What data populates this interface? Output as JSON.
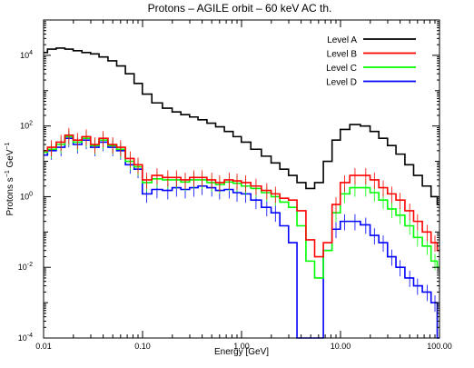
{
  "chart_data": {
    "type": "line",
    "title": "Protons – AGILE orbit – 60 keV AC th.",
    "xlabel": "Energy [GeV]",
    "ylabel": "Protons s",
    "ylabel_sup1": "−1",
    "ylabel_mid": " GeV",
    "ylabel_sup2": "−1",
    "x_scale": "log",
    "y_scale": "log",
    "xlim": [
      0.01,
      100
    ],
    "ylim": [
      0.0001,
      100000
    ],
    "x_ticks": [
      {
        "value": 0.01,
        "label": "0.01"
      },
      {
        "value": 0.1,
        "label": "0.10"
      },
      {
        "value": 1,
        "label": "1.00"
      },
      {
        "value": 10,
        "label": "10.00"
      },
      {
        "value": 100,
        "label": "100.00"
      }
    ],
    "y_ticks": [
      {
        "value": 0.0001,
        "base": "10",
        "exp": "-4"
      },
      {
        "value": 0.01,
        "base": "10",
        "exp": "-2"
      },
      {
        "value": 1,
        "base": "10",
        "exp": "0"
      },
      {
        "value": 100,
        "base": "10",
        "exp": "2"
      },
      {
        "value": 10000,
        "base": "10",
        "exp": "4"
      }
    ],
    "legend_position": "top-right",
    "x": [
      0.01,
      0.012,
      0.015,
      0.018,
      0.022,
      0.027,
      0.033,
      0.04,
      0.05,
      0.06,
      0.075,
      0.09,
      0.11,
      0.14,
      0.18,
      0.22,
      0.27,
      0.33,
      0.4,
      0.5,
      0.6,
      0.75,
      0.9,
      1.1,
      1.4,
      1.8,
      2.2,
      2.7,
      3.3,
      4.0,
      5.0,
      6.0,
      7.5,
      9.0,
      11,
      14,
      18,
      22,
      27,
      33,
      40,
      50,
      60,
      75,
      90,
      100
    ],
    "series": [
      {
        "name": "Level A",
        "color": "#000000",
        "values": [
          12000,
          15000,
          16000,
          15000,
          13500,
          12000,
          11000,
          9000,
          7000,
          5000,
          3000,
          1600,
          800,
          450,
          320,
          250,
          210,
          180,
          150,
          120,
          95,
          70,
          50,
          35,
          22,
          14,
          9,
          6,
          4,
          2.5,
          1.7,
          2.5,
          10,
          40,
          80,
          110,
          100,
          70,
          45,
          28,
          16,
          8,
          4,
          2,
          1,
          0.6
        ]
      },
      {
        "name": "Level B",
        "color": "#ff0000",
        "values": [
          20,
          25,
          35,
          55,
          40,
          50,
          30,
          45,
          30,
          25,
          12,
          8,
          3,
          4,
          3.5,
          3.5,
          3,
          3.5,
          3.5,
          3,
          2.5,
          3,
          2.8,
          2.5,
          2,
          1.5,
          1.2,
          0.9,
          0.8,
          0.4,
          0.06,
          0.02,
          0.05,
          0.6,
          2.5,
          4,
          4,
          3,
          1.8,
          1.2,
          0.8,
          0.4,
          0.2,
          0.1,
          0.05,
          0.03
        ]
      },
      {
        "name": "Level C",
        "color": "#00ff00",
        "values": [
          18,
          22,
          30,
          50,
          35,
          45,
          28,
          40,
          28,
          22,
          10,
          7,
          2.5,
          3.2,
          3,
          3,
          2.6,
          3,
          3,
          2.5,
          2.2,
          2.6,
          2.4,
          2,
          1.7,
          1.3,
          1,
          0.7,
          0.5,
          0.15,
          0.015,
          0.005,
          0.03,
          0.35,
          1.2,
          1.8,
          1.8,
          1.3,
          0.8,
          0.45,
          0.3,
          0.15,
          0.07,
          0.04,
          0.015,
          0.01
        ]
      },
      {
        "name": "Level D",
        "color": "#0000ff",
        "values": [
          15,
          20,
          25,
          45,
          30,
          40,
          25,
          35,
          25,
          20,
          8,
          6,
          1.2,
          1.6,
          1.5,
          1.8,
          1.6,
          1.8,
          2,
          1.8,
          1.5,
          1.6,
          1.3,
          1.2,
          0.8,
          0.5,
          0.35,
          0.15,
          0.05,
          0.0001,
          0.0001,
          0.0001,
          0.03,
          0.12,
          0.2,
          0.2,
          0.16,
          0.08,
          0.05,
          0.02,
          0.01,
          0.005,
          0.003,
          0.002,
          0.001,
          0.0001
        ]
      }
    ]
  }
}
